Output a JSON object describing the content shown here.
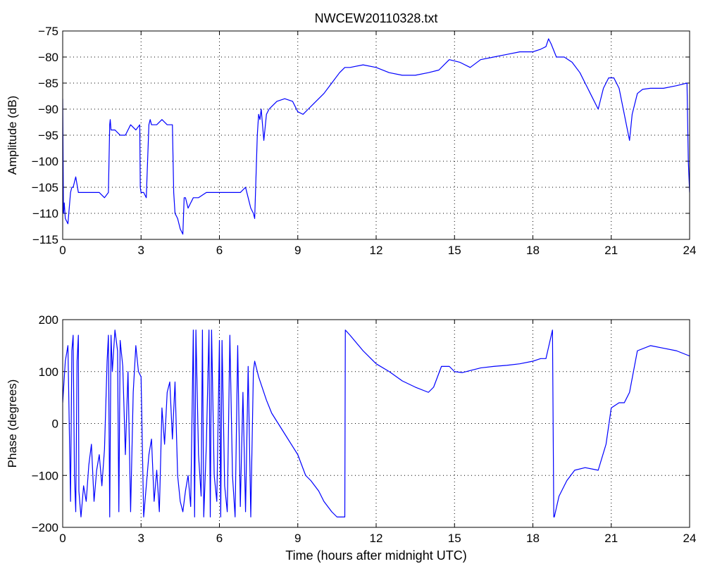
{
  "chart_data": [
    {
      "type": "line",
      "title": "NWCEW20110328.txt",
      "xlabel": "",
      "ylabel": "Amplitude (dB)",
      "xlim": [
        0,
        24
      ],
      "ylim": [
        -115,
        -75
      ],
      "x_ticks": [
        "0",
        "3",
        "6",
        "9",
        "12",
        "15",
        "18",
        "21",
        "24"
      ],
      "y_ticks": [
        "−75",
        "−80",
        "−85",
        "−90",
        "−95",
        "−100",
        "−105",
        "−110",
        "−115"
      ],
      "grid": true,
      "color": "#0000ff",
      "series": [
        {
          "x": [
            0,
            0.03,
            0.06,
            0.1,
            0.2,
            0.3,
            0.35,
            0.4,
            0.5,
            0.6,
            0.8,
            1.0,
            1.2,
            1.4,
            1.6,
            1.75,
            1.8,
            1.82,
            1.85,
            2.0,
            2.2,
            2.4,
            2.6,
            2.8,
            2.95,
            2.97,
            3.0,
            3.1,
            3.2,
            3.3,
            3.35,
            3.4,
            3.6,
            3.8,
            4.0,
            4.2,
            4.25,
            4.3,
            4.4,
            4.5,
            4.6,
            4.65,
            4.7,
            4.8,
            5.0,
            5.2,
            5.5,
            5.8,
            6.0,
            6.2,
            6.5,
            6.8,
            7.0,
            7.1,
            7.2,
            7.3,
            7.35,
            7.4,
            7.45,
            7.5,
            7.55,
            7.6,
            7.7,
            7.8,
            7.9,
            8.0,
            8.2,
            8.5,
            8.8,
            9.0,
            9.2,
            9.4,
            9.6,
            9.8,
            10.0,
            10.3,
            10.6,
            10.8,
            11.0,
            11.5,
            12.0,
            12.5,
            13.0,
            13.5,
            14.0,
            14.4,
            14.8,
            15.2,
            15.6,
            16.0,
            16.5,
            17.0,
            17.5,
            18.0,
            18.3,
            18.5,
            18.6,
            18.7,
            18.9,
            19.2,
            19.5,
            19.8,
            20.0,
            20.2,
            20.5,
            20.7,
            20.9,
            21.1,
            21.3,
            21.5,
            21.7,
            21.8,
            22.0,
            22.2,
            22.5,
            23.0,
            23.5,
            23.9,
            23.95,
            24.0
          ],
          "y": [
            -88,
            -110,
            -108,
            -111,
            -112,
            -106,
            -105,
            -105,
            -103,
            -106,
            -106,
            -106,
            -106,
            -106,
            -107,
            -106,
            -93,
            -92,
            -94,
            -94,
            -95,
            -95,
            -93,
            -94,
            -93,
            -105,
            -106,
            -106,
            -107,
            -93,
            -92,
            -93,
            -93,
            -92,
            -93,
            -93,
            -106,
            -110,
            -111,
            -113,
            -114,
            -107,
            -107,
            -109,
            -107,
            -107,
            -106,
            -106,
            -106,
            -106,
            -106,
            -106,
            -105,
            -107,
            -109,
            -110,
            -111,
            -103,
            -95,
            -91,
            -92,
            -90,
            -96,
            -91,
            -90,
            -89.5,
            -88.5,
            -88,
            -88.5,
            -90.5,
            -91,
            -90,
            -89,
            -88,
            -87,
            -85,
            -83,
            -82,
            -82,
            -81.5,
            -82,
            -83,
            -83.5,
            -83.5,
            -83,
            -82.5,
            -80.5,
            -81,
            -82,
            -80.5,
            -80,
            -79.5,
            -79,
            -79,
            -78.5,
            -78,
            -76.5,
            -77.5,
            -80,
            -80,
            -81,
            -83,
            -85,
            -87,
            -90,
            -86,
            -84,
            -84,
            -86,
            -91,
            -96,
            -91,
            -87,
            -86.2,
            -86,
            -86,
            -85.5,
            -85,
            -100,
            -106
          ]
        }
      ]
    },
    {
      "type": "line",
      "title": "",
      "xlabel": "Time (hours after midnight UTC)",
      "ylabel": "Phase (degrees)",
      "xlim": [
        0,
        24
      ],
      "ylim": [
        -200,
        200
      ],
      "x_ticks": [
        "0",
        "3",
        "6",
        "9",
        "12",
        "15",
        "18",
        "21",
        "24"
      ],
      "y_ticks": [
        "200",
        "100",
        "0",
        "−100",
        "−200"
      ],
      "grid": true,
      "color": "#0000ff",
      "series": [
        {
          "x": [
            0,
            0.1,
            0.2,
            0.3,
            0.35,
            0.4,
            0.45,
            0.5,
            0.55,
            0.6,
            0.62,
            0.7,
            0.8,
            0.9,
            1.0,
            1.1,
            1.2,
            1.3,
            1.4,
            1.5,
            1.6,
            1.7,
            1.75,
            1.8,
            1.85,
            1.9,
            2.0,
            2.1,
            2.15,
            2.2,
            2.3,
            2.4,
            2.5,
            2.6,
            2.7,
            2.8,
            2.9,
            3.0,
            3.1,
            3.2,
            3.3,
            3.4,
            3.5,
            3.6,
            3.7,
            3.8,
            3.9,
            4.0,
            4.1,
            4.2,
            4.3,
            4.4,
            4.5,
            4.6,
            4.7,
            4.8,
            4.9,
            5.0,
            5.05,
            5.1,
            5.2,
            5.3,
            5.35,
            5.4,
            5.5,
            5.6,
            5.65,
            5.7,
            5.8,
            5.9,
            6.0,
            6.05,
            6.1,
            6.2,
            6.3,
            6.4,
            6.5,
            6.6,
            6.7,
            6.8,
            6.9,
            7.0,
            7.1,
            7.2,
            7.3,
            7.35,
            7.5,
            7.8,
            8.0,
            8.5,
            9.0,
            9.3,
            9.5,
            9.8,
            10.0,
            10.3,
            10.5,
            10.8,
            10.82,
            11.0,
            11.5,
            12.0,
            12.5,
            13.0,
            13.5,
            14.0,
            14.2,
            14.5,
            14.8,
            15.0,
            15.3,
            15.6,
            16.0,
            16.5,
            17.0,
            17.5,
            18.0,
            18.3,
            18.5,
            18.75,
            18.8,
            18.82,
            19.0,
            19.3,
            19.6,
            20.0,
            20.3,
            20.5,
            20.8,
            21.0,
            21.3,
            21.5,
            21.7,
            22.0,
            22.5,
            23.0,
            23.5,
            24.0
          ],
          "y": [
            40,
            120,
            150,
            -150,
            140,
            170,
            -100,
            -170,
            120,
            170,
            -130,
            -180,
            -120,
            -150,
            -80,
            -40,
            -150,
            -90,
            -60,
            -120,
            -50,
            120,
            170,
            -180,
            170,
            100,
            180,
            140,
            -170,
            160,
            110,
            -60,
            100,
            -170,
            60,
            150,
            100,
            90,
            -180,
            -120,
            -60,
            -30,
            -150,
            -90,
            -170,
            30,
            -40,
            60,
            80,
            -30,
            80,
            -100,
            -150,
            -170,
            -130,
            -100,
            -160,
            180,
            -180,
            180,
            -60,
            -140,
            180,
            -180,
            -40,
            180,
            -180,
            180,
            -100,
            -150,
            160,
            -180,
            160,
            -120,
            -170,
            170,
            -100,
            -180,
            150,
            -160,
            60,
            -170,
            110,
            -180,
            100,
            120,
            90,
            45,
            20,
            -20,
            -60,
            -100,
            -110,
            -130,
            -150,
            -170,
            -180,
            -180,
            180,
            170,
            140,
            115,
            100,
            82,
            70,
            60,
            70,
            110,
            110,
            100,
            98,
            102,
            107,
            110,
            112,
            115,
            120,
            125,
            125,
            180,
            -180,
            -180,
            -140,
            -110,
            -90,
            -85,
            -88,
            -90,
            -40,
            30,
            40,
            40,
            60,
            140,
            150,
            145,
            140,
            130
          ]
        }
      ]
    }
  ]
}
